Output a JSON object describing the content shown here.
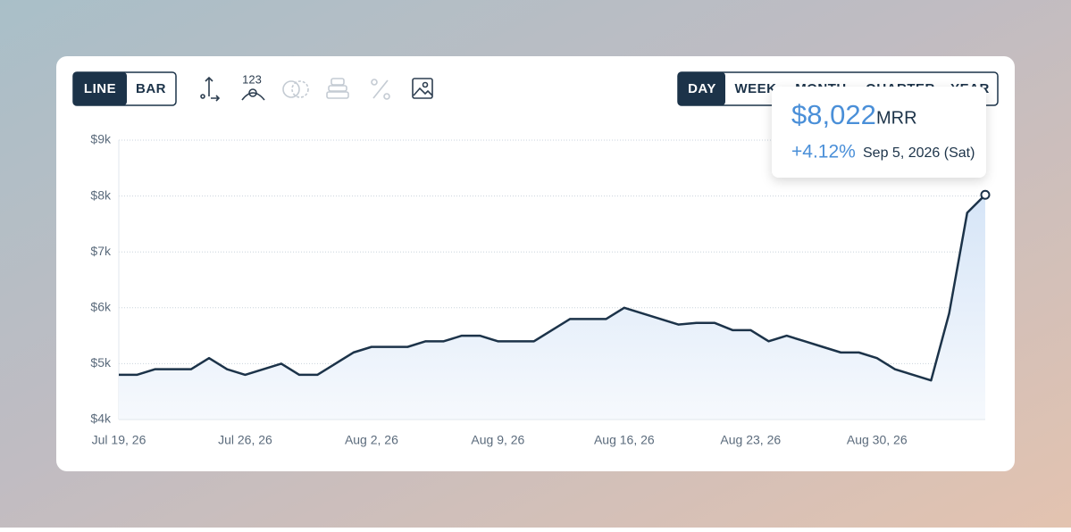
{
  "toolbar": {
    "chart_types": [
      "LINE",
      "BAR"
    ],
    "icon_label": "123",
    "periods": [
      "DAY",
      "WEEK",
      "MONTH",
      "QUARTER",
      "YEAR"
    ]
  },
  "chart_data": {
    "type": "line",
    "color": "#1c3349",
    "fill": "#dde9f8",
    "categories": [
      "Jul 19, 26",
      null,
      null,
      null,
      null,
      null,
      null,
      "Jul 26, 26",
      null,
      null,
      null,
      null,
      null,
      null,
      "Aug 2, 26",
      null,
      null,
      null,
      null,
      null,
      null,
      "Aug 9, 26",
      null,
      null,
      null,
      null,
      null,
      null,
      "Aug 16, 26",
      null,
      null,
      null,
      null,
      null,
      null,
      "Aug 23, 26",
      null,
      null,
      null,
      null,
      null,
      null,
      "Aug 30, 26",
      null,
      null,
      null,
      null,
      null,
      null
    ],
    "values": [
      4800,
      4800,
      4900,
      4900,
      4900,
      5100,
      4900,
      4800,
      4900,
      5000,
      4800,
      4800,
      5000,
      5200,
      5300,
      5300,
      5300,
      5400,
      5400,
      5500,
      5500,
      5400,
      5400,
      5400,
      5600,
      5800,
      5800,
      5800,
      6000,
      5900,
      5800,
      5700,
      5730,
      5730,
      5600,
      5600,
      5400,
      5500,
      5400,
      5300,
      5200,
      5200,
      5100,
      4900,
      4800,
      4700,
      5900,
      7700,
      8022
    ],
    "ylim": [
      4000,
      9000
    ],
    "yticks": [
      {
        "value": 4000,
        "label": "$4k"
      },
      {
        "value": 5000,
        "label": "$5k"
      },
      {
        "value": 6000,
        "label": "$6k"
      },
      {
        "value": 7000,
        "label": "$7k"
      },
      {
        "value": 8000,
        "label": "$8k"
      },
      {
        "value": 9000,
        "label": "$9k"
      }
    ],
    "grid": true,
    "tooltip": {
      "value_label": "$8,022",
      "unit": "MRR",
      "change": "+4.12%",
      "date": "Sep 5, 2026 (Sat)"
    }
  }
}
